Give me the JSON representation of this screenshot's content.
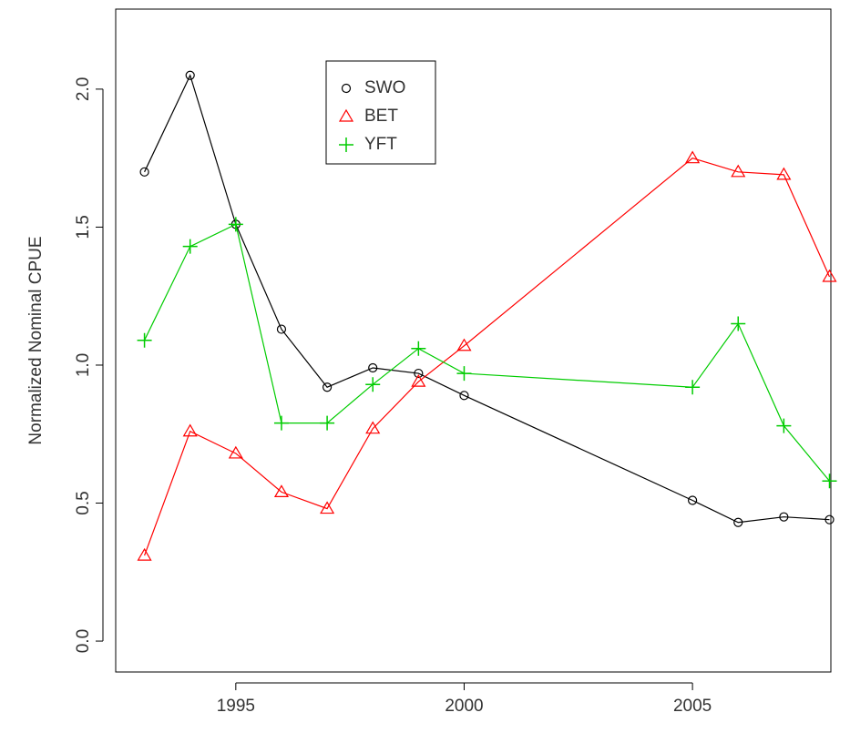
{
  "chart_data": {
    "type": "line",
    "y_label": "Normalized Nominal CPUE",
    "x": [
      1993,
      1994,
      1995,
      1996,
      1997,
      1998,
      1999,
      2000,
      2005,
      2006,
      2007,
      2008
    ],
    "series": [
      {
        "name": "SWO",
        "color": "#000000",
        "marker": "circle",
        "values": [
          1.7,
          2.05,
          1.51,
          1.13,
          0.92,
          0.99,
          0.97,
          0.89,
          0.51,
          0.43,
          0.45,
          0.44
        ]
      },
      {
        "name": "BET",
        "color": "#ff0000",
        "marker": "triangle",
        "values": [
          0.31,
          0.76,
          0.68,
          0.54,
          0.48,
          0.77,
          0.94,
          1.07,
          1.75,
          1.7,
          1.69,
          1.32
        ]
      },
      {
        "name": "YFT",
        "color": "#00cc00",
        "marker": "plus",
        "values": [
          1.09,
          1.43,
          1.51,
          0.79,
          0.79,
          0.93,
          1.06,
          0.97,
          0.92,
          1.15,
          0.78,
          0.58
        ]
      }
    ],
    "xlim": [
      1992.37,
      2008.03
    ],
    "xticks": [
      1995,
      2000,
      2005
    ],
    "ylim": [
      -0.112,
      2.29
    ],
    "yticks": [
      {
        "value": 0,
        "label": "0.0"
      },
      {
        "value": 0.5,
        "label": "0.5"
      },
      {
        "value": 1,
        "label": "1.0"
      },
      {
        "value": 1.5,
        "label": "1.5"
      },
      {
        "value": 2,
        "label": "2.0"
      }
    ],
    "legend": "top-left"
  }
}
